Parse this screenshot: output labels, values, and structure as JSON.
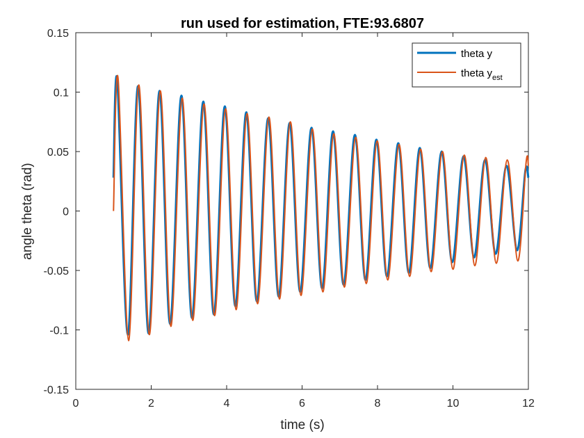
{
  "chart_data": {
    "type": "line",
    "title": "run used for estimation, FTE:93.6807",
    "xlabel": "time (s)",
    "ylabel": "angle theta (rad)",
    "xlim": [
      0,
      12
    ],
    "ylim": [
      -0.15,
      0.15
    ],
    "xticks": [
      0,
      2,
      4,
      6,
      8,
      10,
      12
    ],
    "xtick_labels": [
      "0",
      "2",
      "4",
      "6",
      "8",
      "10",
      "12"
    ],
    "yticks": [
      -0.15,
      -0.1,
      -0.05,
      0,
      0.05,
      0.1,
      0.15
    ],
    "ytick_labels": [
      "-0.15",
      "-0.1",
      "-0.05",
      "0",
      "0.05",
      "0.1",
      "0.15"
    ],
    "grid": false,
    "legend_position": "top-right",
    "series": [
      {
        "name": "theta y",
        "color": "#0072BD",
        "x": [
          1.0,
          1.1,
          1.38,
          1.65,
          1.93,
          2.22,
          2.5,
          2.8,
          3.08,
          3.38,
          3.66,
          3.95,
          4.23,
          4.52,
          4.8,
          5.1,
          5.38,
          5.67,
          5.95,
          6.25,
          6.53,
          6.82,
          7.1,
          7.4,
          7.68,
          7.97,
          8.25,
          8.55,
          8.83,
          9.12,
          9.4,
          9.7,
          9.98,
          10.28,
          10.56,
          10.85,
          11.13,
          11.42,
          11.7,
          11.92,
          12.0
        ],
        "y": [
          0.028,
          0.11,
          -0.104,
          0.105,
          -0.103,
          0.101,
          -0.095,
          0.097,
          -0.09,
          0.092,
          -0.087,
          0.088,
          -0.08,
          0.083,
          -0.076,
          0.078,
          -0.072,
          0.074,
          -0.068,
          0.07,
          -0.065,
          0.067,
          -0.062,
          0.064,
          -0.058,
          0.06,
          -0.055,
          0.057,
          -0.052,
          0.053,
          -0.048,
          0.05,
          -0.043,
          0.046,
          -0.039,
          0.043,
          -0.036,
          0.038,
          -0.033,
          0.034,
          0.028
        ]
      },
      {
        "name": "theta y",
        "name_subscript": "est",
        "color": "#D95319",
        "x": [
          1.0,
          1.12,
          1.4,
          1.67,
          1.95,
          2.24,
          2.52,
          2.82,
          3.1,
          3.4,
          3.68,
          3.97,
          4.25,
          4.54,
          4.82,
          5.12,
          5.4,
          5.69,
          5.97,
          6.27,
          6.55,
          6.84,
          7.12,
          7.42,
          7.7,
          7.99,
          8.27,
          8.57,
          8.85,
          9.14,
          9.42,
          9.72,
          10.0,
          10.3,
          10.58,
          10.87,
          11.15,
          11.44,
          11.72,
          11.94,
          12.0
        ],
        "y": [
          0.0,
          0.112,
          -0.109,
          0.106,
          -0.104,
          0.101,
          -0.097,
          0.095,
          -0.092,
          0.09,
          -0.088,
          0.086,
          -0.083,
          0.082,
          -0.078,
          0.079,
          -0.074,
          0.075,
          -0.071,
          0.069,
          -0.068,
          0.065,
          -0.064,
          0.062,
          -0.061,
          0.059,
          -0.058,
          0.056,
          -0.055,
          0.052,
          -0.051,
          0.05,
          -0.049,
          0.047,
          -0.046,
          0.045,
          -0.044,
          0.043,
          -0.042,
          0.041,
          0.038
        ]
      }
    ]
  }
}
